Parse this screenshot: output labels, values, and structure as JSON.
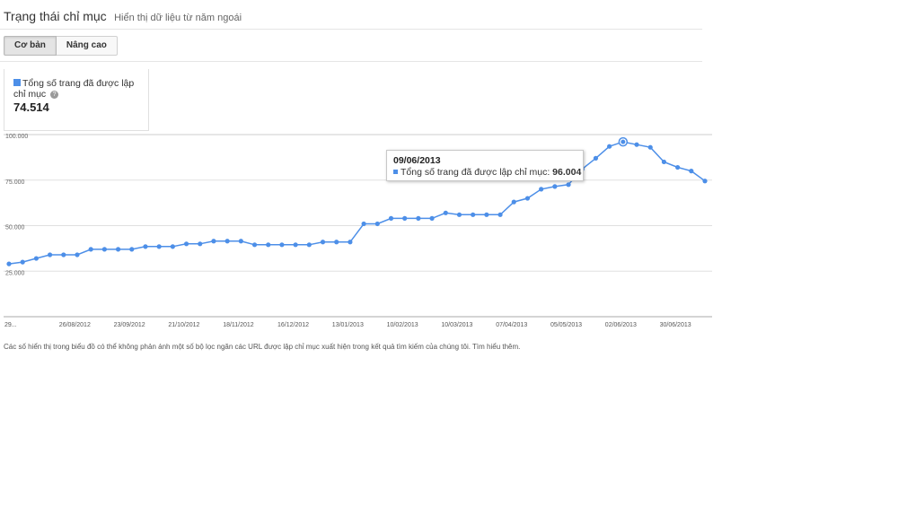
{
  "header": {
    "title": "Trạng thái chỉ mục",
    "subtitle": "Hiển thị dữ liệu từ năm ngoái"
  },
  "tabs": [
    {
      "label": "Cơ bản",
      "active": true
    },
    {
      "label": "Nâng cao",
      "active": false
    }
  ],
  "metric": {
    "label": "Tổng số trang đã được lập chỉ mục",
    "value": "74.514",
    "color": "#4d8fe8"
  },
  "tooltip": {
    "date": "09/06/2013",
    "series": "Tổng số trang đã được lập chỉ mục:",
    "value": "96.004"
  },
  "note": {
    "text": "Các số hiển thị trong biểu đồ có thể không phản ánh một số bộ lọc ngăn các URL được lập chỉ mục xuất hiện trong kết quả tìm kiếm của chúng tôi.",
    "link": "Tìm hiểu thêm."
  },
  "chart_data": {
    "type": "line",
    "ylim": [
      0,
      100000
    ],
    "yticks": [
      "100.000",
      "75.000",
      "50.000",
      "25.000"
    ],
    "xticks": [
      "29...",
      "26/08/2012",
      "23/09/2012",
      "21/10/2012",
      "18/11/2012",
      "16/12/2012",
      "13/01/2013",
      "10/02/2013",
      "10/03/2013",
      "07/04/2013",
      "05/05/2013",
      "02/06/2013",
      "30/06/2013"
    ],
    "grid": true,
    "color": "#4d8fe8",
    "series": [
      {
        "name": "Tổng số trang đã được lập chỉ mục",
        "values": [
          29000,
          30000,
          32000,
          34000,
          34000,
          34000,
          37000,
          37000,
          37000,
          37000,
          38500,
          38500,
          38500,
          40000,
          40000,
          41500,
          41500,
          41500,
          39500,
          39500,
          39500,
          39500,
          39500,
          41000,
          41000,
          41000,
          51000,
          51000,
          54000,
          54000,
          54000,
          54000,
          57000,
          56000,
          56000,
          56000,
          56000,
          63000,
          65000,
          70000,
          71500,
          72500,
          81000,
          87000,
          93500,
          96004,
          94500,
          93000,
          85000,
          82000,
          80000,
          74514
        ],
        "highlight_index": 45
      }
    ]
  }
}
